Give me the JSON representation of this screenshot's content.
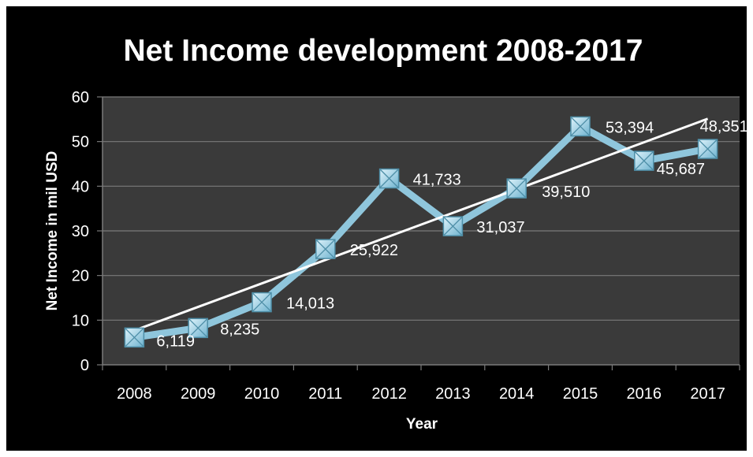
{
  "chart_data": {
    "type": "line",
    "title": "Net Income development 2008-2017",
    "xlabel": "Year",
    "ylabel": "Net Income in mil USD",
    "categories": [
      "2008",
      "2009",
      "2010",
      "2011",
      "2012",
      "2013",
      "2014",
      "2015",
      "2016",
      "2017"
    ],
    "ylim": [
      0,
      60
    ],
    "yticks": [
      "0",
      "10",
      "20",
      "30",
      "40",
      "50",
      "60"
    ],
    "grid": true,
    "legend": "none",
    "series": [
      {
        "values": [
          6.119,
          8.235,
          14.013,
          25.922,
          41.733,
          31.037,
          39.51,
          53.394,
          45.687,
          48.351
        ],
        "labels": [
          "6,119",
          "8,235",
          "14,013",
          "25,922",
          "41,733",
          "31,037",
          "39,510",
          "53,394",
          "45,687",
          "48,351"
        ],
        "color": "#8fc6dc",
        "marker": "square-x"
      }
    ],
    "trendline": {
      "type": "linear",
      "color": "#ffffff"
    }
  },
  "colors": {
    "background": "#000000",
    "plot_area": "#3a3a3a",
    "gridline": "#7a7a7a",
    "series": "#8fc6dc",
    "trendline": "#ffffff",
    "text": "#ffffff"
  }
}
